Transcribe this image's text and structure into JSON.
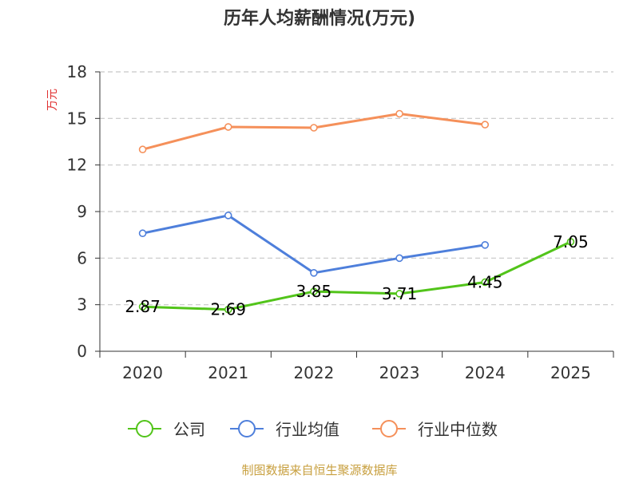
{
  "chart_data": {
    "type": "line",
    "title": "历年人均薪酬情况(万元)",
    "ylabel": "万元",
    "xlabel": "",
    "categories": [
      "2020",
      "2021",
      "2022",
      "2023",
      "2024",
      "2025"
    ],
    "ylim": [
      0,
      18
    ],
    "yticks": [
      0,
      3,
      6,
      9,
      12,
      15,
      18
    ],
    "grid": true,
    "legend_position": "bottom",
    "series": [
      {
        "name": "公司",
        "color": "#52c41a",
        "values": [
          2.87,
          2.69,
          3.85,
          3.71,
          4.45,
          7.05
        ],
        "show_labels": true,
        "label_texts": [
          "2.87",
          "2.69",
          "3.85",
          "3.71",
          "4.45",
          "7.05"
        ]
      },
      {
        "name": "行业均值",
        "color": "#4e7fdb",
        "values": [
          7.6,
          8.75,
          5.05,
          6.0,
          6.85,
          null
        ],
        "show_labels": false
      },
      {
        "name": "行业中位数",
        "color": "#f5905a",
        "values": [
          13.0,
          14.45,
          14.4,
          15.3,
          14.6,
          null
        ],
        "show_labels": false
      }
    ]
  },
  "colors": {
    "ylabel": "#e03030",
    "source": "#c8a040",
    "axis": "#333333",
    "grid": "#c8c8c8"
  },
  "source_text": "制图数据来自恒生聚源数据库"
}
